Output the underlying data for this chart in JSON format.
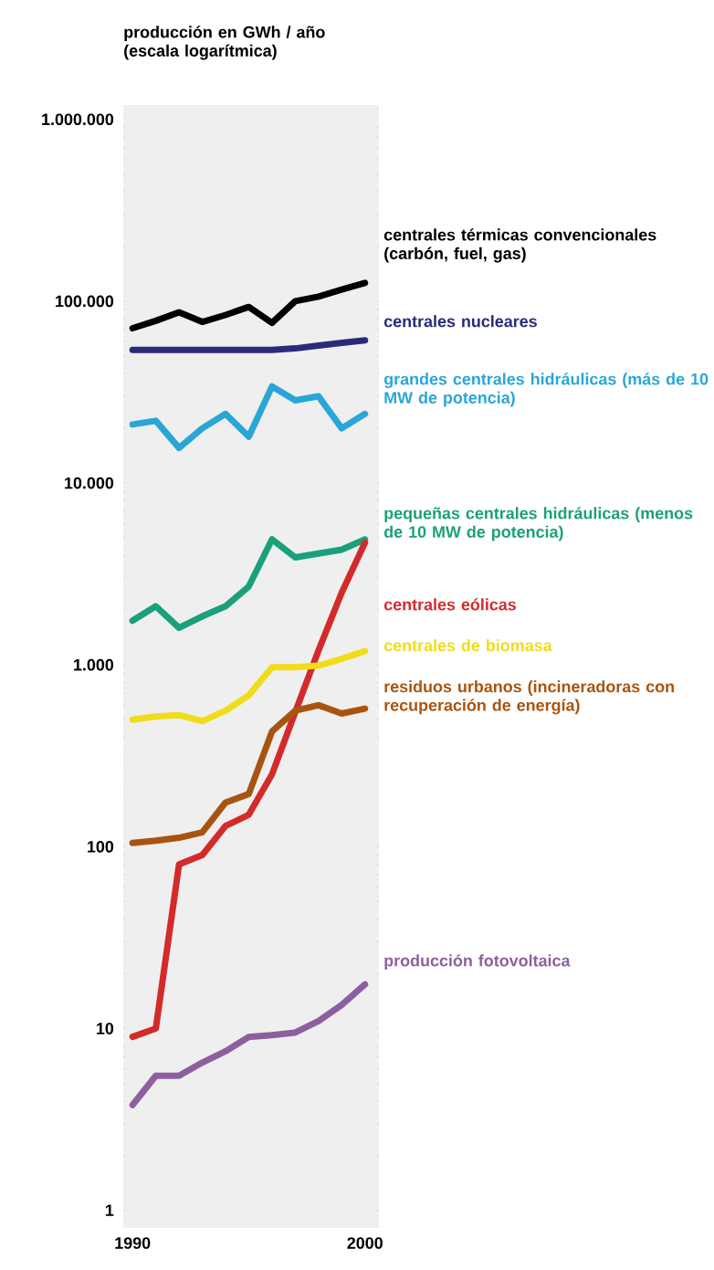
{
  "chart_data": {
    "type": "line",
    "ylabel": "producción en GWh / año (escala logarítmica)",
    "x": [
      1990,
      1991,
      1992,
      1993,
      1994,
      1995,
      1996,
      1997,
      1998,
      1999,
      2000
    ],
    "series": [
      {
        "name": "centrales térmicas convencionales (carbón, fuel, gas)",
        "color": "#000000",
        "values": [
          71000,
          78000,
          87000,
          77000,
          84000,
          93000,
          76000,
          100000,
          106000,
          116000,
          126000
        ]
      },
      {
        "name": "centrales nucleares",
        "color": "#2b2a7a",
        "values": [
          54000,
          54000,
          54000,
          54000,
          54000,
          54000,
          54000,
          55000,
          57000,
          59000,
          61000
        ]
      },
      {
        "name": "grandes centrales hidráulicas (más de 10 MW de potencia)",
        "color": "#29a6d6",
        "values": [
          21000,
          22000,
          15600,
          20000,
          24000,
          18000,
          34000,
          28500,
          30000,
          20000,
          24000
        ]
      },
      {
        "name": "pequeñas centrales hidráulicas (menos de 10 MW de potencia)",
        "color": "#1aa07a",
        "values": [
          1750,
          2100,
          1600,
          1850,
          2100,
          2700,
          4900,
          3900,
          4100,
          4300,
          4900
        ]
      },
      {
        "name": "centrales eólicas",
        "color": "#d42a2a",
        "values": [
          9,
          10,
          80,
          90,
          130,
          150,
          250,
          550,
          1200,
          2500,
          4700
        ]
      },
      {
        "name": "centrales de biomasa",
        "color": "#f0dc1a",
        "values": [
          500,
          520,
          530,
          490,
          560,
          680,
          970,
          970,
          990,
          1080,
          1190
        ]
      },
      {
        "name": "residuos urbanos (incineradoras con recuperación de energía)",
        "color": "#a85410",
        "values": [
          105,
          108,
          112,
          120,
          175,
          195,
          430,
          560,
          600,
          540,
          575
        ]
      },
      {
        "name": "producción fotovoltaica",
        "color": "#8e5fa0",
        "values": [
          3.8,
          5.5,
          5.5,
          6.5,
          7.5,
          9,
          9.2,
          9.5,
          11,
          13.5,
          17.5
        ]
      }
    ],
    "xlim": [
      1989.6,
      2000.6
    ],
    "ylim": [
      0.8,
      1200000
    ],
    "log": "y",
    "xticks": [
      1990,
      2000
    ],
    "yticks": [
      1,
      10,
      100,
      {
        "value": 1000,
        "label": "1.000"
      },
      {
        "value": 10000,
        "label": "10.000"
      },
      {
        "value": 100000,
        "label": "100.000"
      },
      {
        "value": 1000000,
        "label": "1.000.000"
      }
    ]
  }
}
